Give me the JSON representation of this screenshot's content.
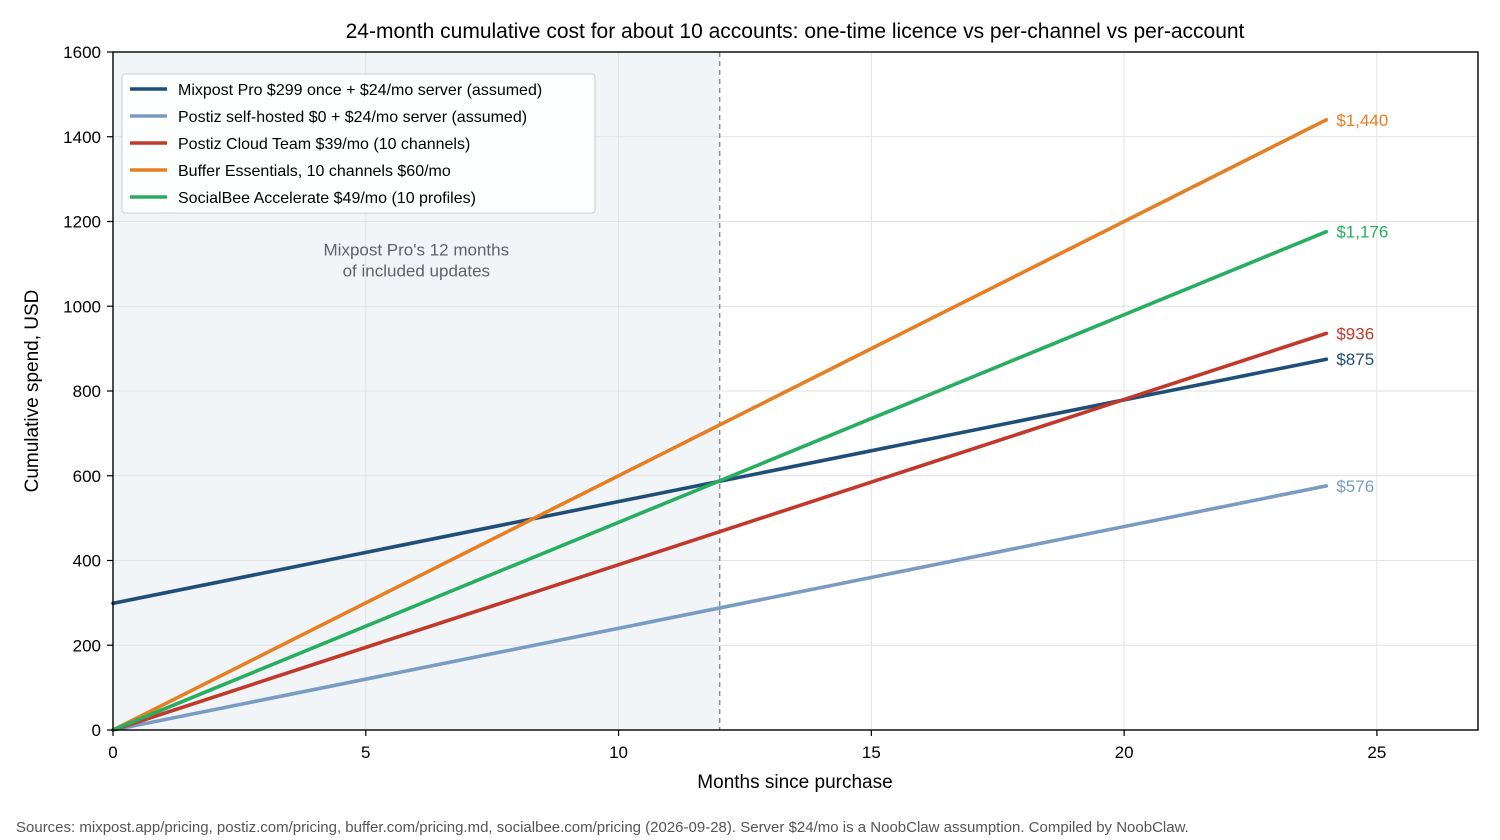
{
  "chart_data": {
    "type": "line",
    "title": "24-month cumulative cost for about 10 accounts: one-time licence vs per-channel vs per-account",
    "xlabel": "Months since purchase",
    "ylabel": "Cumulative spend, USD",
    "xlim": [
      0,
      27
    ],
    "ylim": [
      0,
      1600
    ],
    "xticks": [
      0,
      5,
      10,
      15,
      20,
      25
    ],
    "yticks": [
      0,
      200,
      400,
      600,
      800,
      1000,
      1200,
      1400,
      1600
    ],
    "grid": true,
    "legend_position": "upper-left",
    "shaded_region": {
      "x": [
        0,
        12
      ],
      "color": "#f2f5f8"
    },
    "vline": {
      "x": 12,
      "style": "dashed",
      "color": "#8a8f96"
    },
    "annotation": {
      "lines": [
        "Mixpost Pro's 12 months",
        "of included updates"
      ],
      "x": 6,
      "y": 1120
    },
    "series": [
      {
        "name": "Mixpost Pro $299 once + $24/mo server (assumed)",
        "color": "#1f4e79",
        "x": [
          0,
          24
        ],
        "y": [
          299,
          875
        ],
        "end_label": "$875"
      },
      {
        "name": "Postiz self-hosted $0 + $24/mo server (assumed)",
        "color": "#7a9cc2",
        "x": [
          0,
          24
        ],
        "y": [
          0,
          576
        ],
        "end_label": "$576"
      },
      {
        "name": "Postiz Cloud Team $39/mo (10 channels)",
        "color": "#c0392b",
        "x": [
          0,
          24
        ],
        "y": [
          0,
          936
        ],
        "end_label": "$936"
      },
      {
        "name": "Buffer Essentials, 10 channels $60/mo",
        "color": "#e67e22",
        "x": [
          0,
          24
        ],
        "y": [
          0,
          1440
        ],
        "end_label": "$1,440"
      },
      {
        "name": "SocialBee Accelerate $49/mo (10 profiles)",
        "color": "#27ae60",
        "x": [
          0,
          24
        ],
        "y": [
          0,
          1176
        ],
        "end_label": "$1,176"
      }
    ]
  },
  "footer": {
    "source": "Sources: mixpost.app/pricing, postiz.com/pricing, buffer.com/pricing.md, socialbee.com/pricing (2026-09-28). Server $24/mo is a NoobClaw assumption. Compiled by NoobClaw."
  }
}
